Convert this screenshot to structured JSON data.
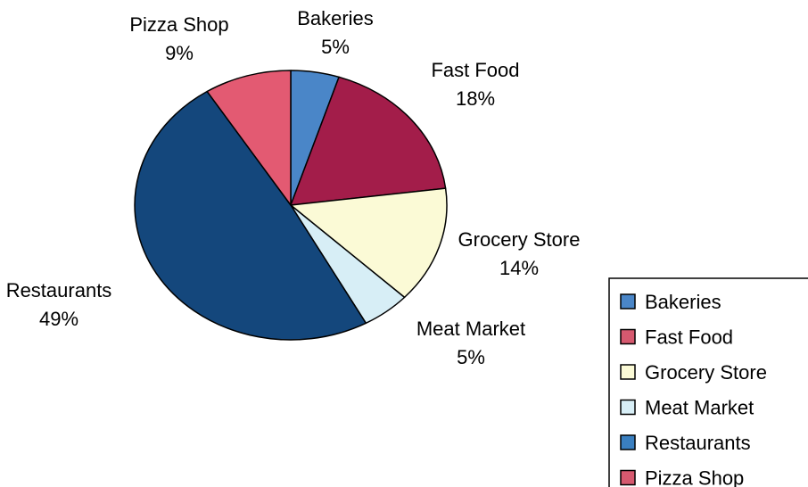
{
  "chart_data": {
    "type": "pie",
    "title": "",
    "slices": [
      {
        "label": "Bakeries",
        "value": 5,
        "value_label": "5%",
        "color": "#4a86c8"
      },
      {
        "label": "Fast Food",
        "value": 18,
        "value_label": "18%",
        "color": "#a31d4a"
      },
      {
        "label": "Grocery Store",
        "value": 14,
        "value_label": "14%",
        "color": "#fbfad6"
      },
      {
        "label": "Meat Market",
        "value": 5,
        "value_label": "5%",
        "color": "#d7eef6"
      },
      {
        "label": "Restaurants",
        "value": 49,
        "value_label": "49%",
        "color": "#14477c"
      },
      {
        "label": "Pizza Shop",
        "value": 9,
        "value_label": "9%",
        "color": "#e35a72"
      }
    ],
    "start": "top, clockwise",
    "legend": {
      "position": "right",
      "items": [
        {
          "label": "Bakeries",
          "color": "#4a86c8"
        },
        {
          "label": "Fast Food",
          "color": "#d6596f"
        },
        {
          "label": "Grocery Store",
          "color": "#fbfad6"
        },
        {
          "label": "Meat Market",
          "color": "#d7eef6"
        },
        {
          "label": "Restaurants",
          "color": "#3a7fc0"
        },
        {
          "label": "Pizza Shop",
          "color": "#d6596f"
        }
      ]
    }
  }
}
